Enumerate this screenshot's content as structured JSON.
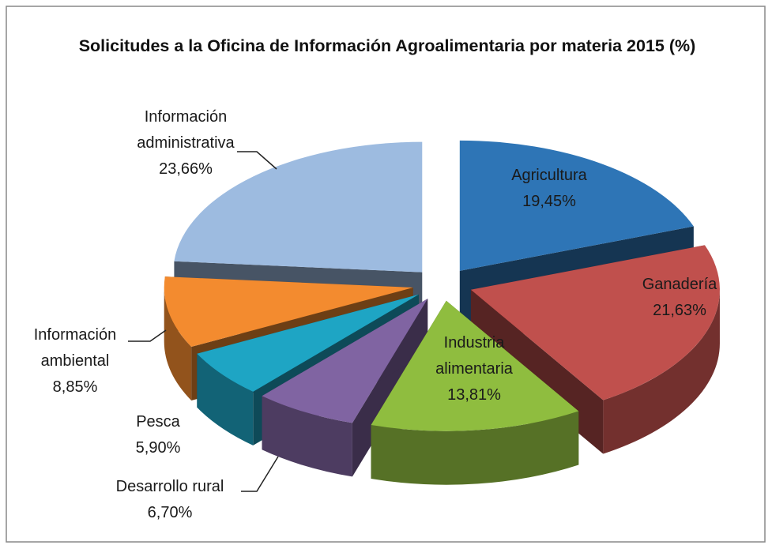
{
  "chart_data": {
    "type": "pie3d",
    "title": "Solicitudes a la Oficina de Información Agroalimentaria por materia 2015 (%)",
    "categories": [
      "Agricultura",
      "Ganadería",
      "Industria alimentaria",
      "Desarrollo rural",
      "Pesca",
      "Información ambiental",
      "Información administrativa"
    ],
    "values": [
      19.45,
      21.63,
      13.81,
      6.7,
      5.9,
      8.85,
      23.66
    ],
    "value_labels": [
      "19,45%",
      "21,63%",
      "13,81%",
      "6,70%",
      "5,90%",
      "8,85%",
      "23,66%"
    ],
    "colors": [
      "#2e75b6",
      "#c0504d",
      "#8fbd3f",
      "#8064a2",
      "#1ea5c4",
      "#f38b2f",
      "#9dbbe0"
    ]
  }
}
